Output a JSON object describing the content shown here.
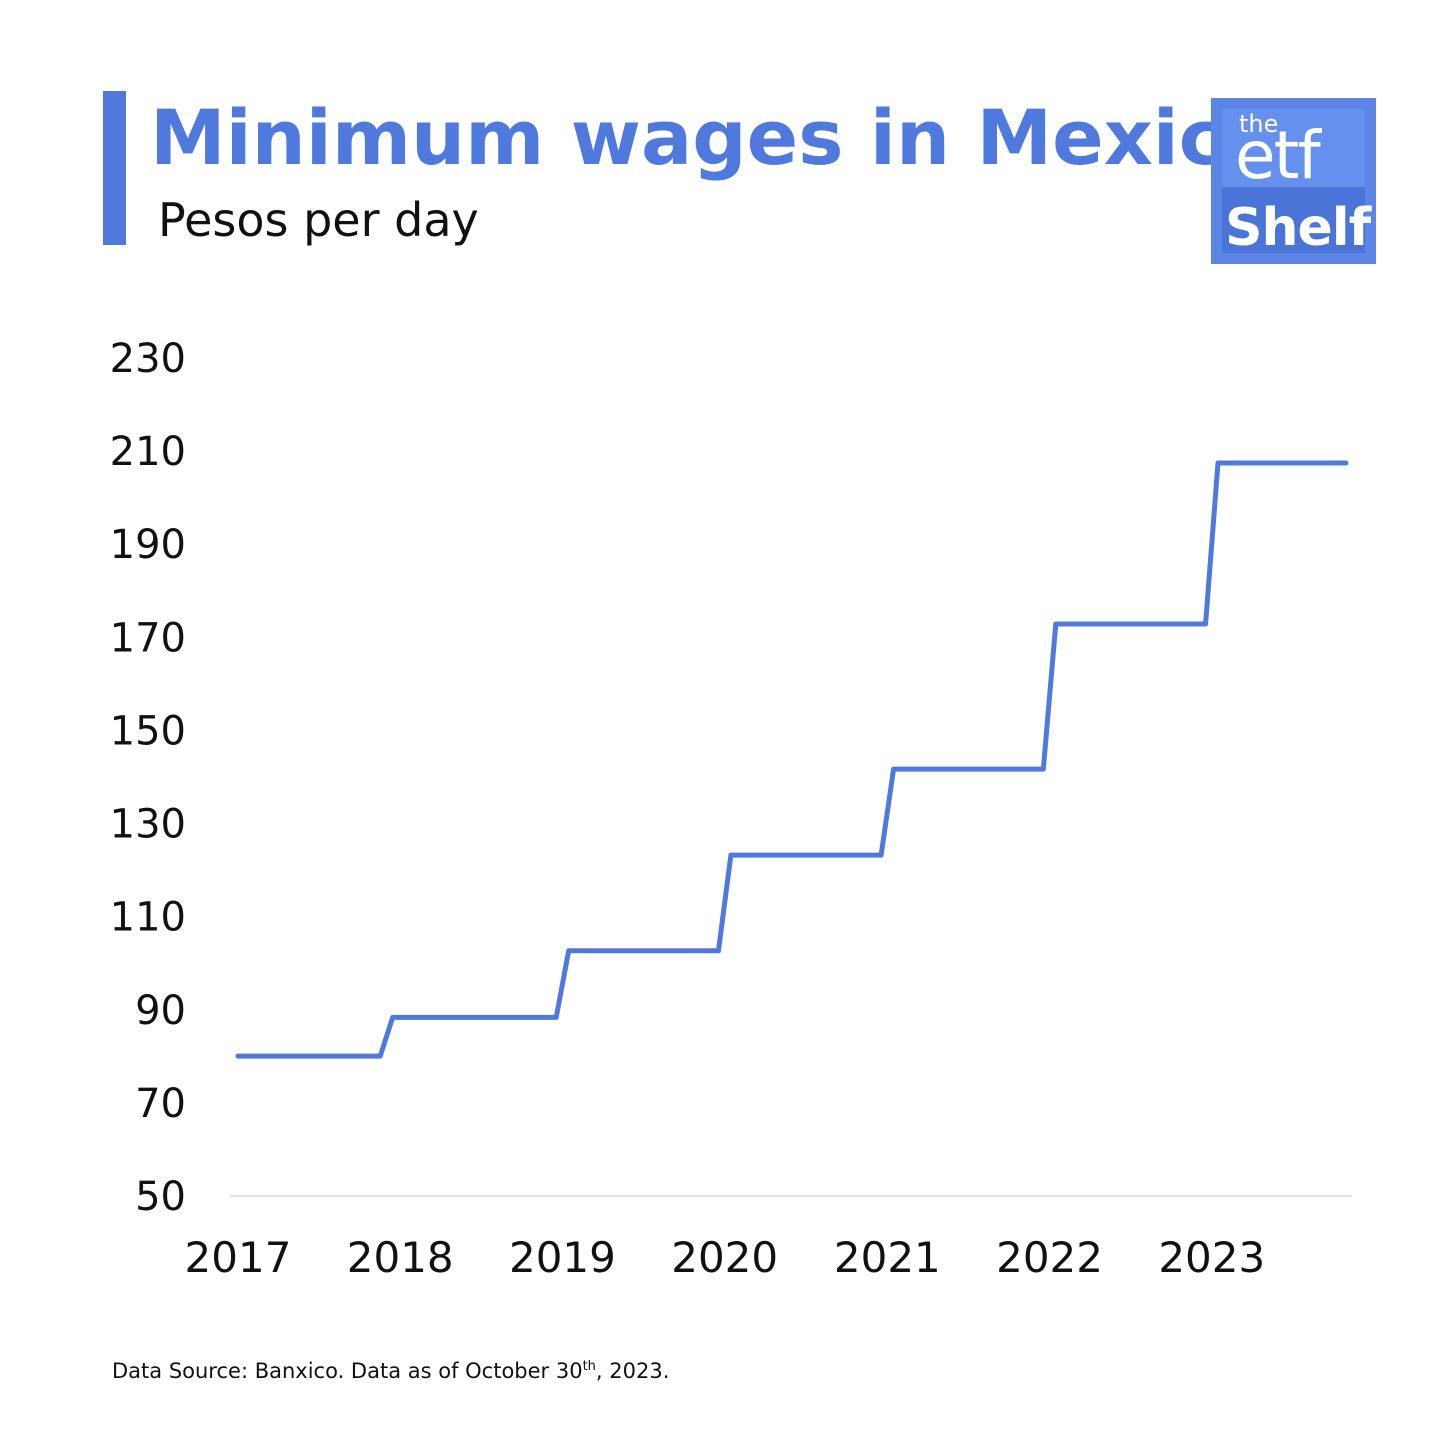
{
  "header": {
    "title": "Minimum wages in Mexico",
    "subtitle": "Pesos per day"
  },
  "logo": {
    "line1": "the",
    "line2": "etf",
    "line3": "Shelf"
  },
  "footer": {
    "source_prefix": "Data Source: Banxico. Data as of October 30",
    "source_sup": "th",
    "source_suffix": ", 2023."
  },
  "colors": {
    "accent": "#4f79dd",
    "axis_line": "#e4e4e4",
    "text": "#111111"
  },
  "chart_data": {
    "type": "line",
    "step": true,
    "title": "Minimum wages in Mexico",
    "subtitle": "Pesos per day",
    "xlabel": "",
    "ylabel": "",
    "xlim": [
      "2017-01-01",
      "2023-10-30"
    ],
    "ylim": [
      50,
      230
    ],
    "yticks": [
      "230",
      "210",
      "190",
      "170",
      "150",
      "130",
      "110",
      "90",
      "70",
      "50"
    ],
    "xticks": [
      "2017",
      "2018",
      "2019",
      "2020",
      "2021",
      "2022",
      "2023"
    ],
    "grid": false,
    "legend": "none",
    "series": [
      {
        "color": "#4f79dd",
        "points": [
          {
            "x": "2017-01-01",
            "y": 80.04
          },
          {
            "x": "2017-12-01",
            "y": 88.36
          },
          {
            "x": "2019-01-01",
            "y": 102.68
          },
          {
            "x": "2020-01-01",
            "y": 123.22
          },
          {
            "x": "2021-01-01",
            "y": 141.7
          },
          {
            "x": "2022-01-01",
            "y": 172.87
          },
          {
            "x": "2023-01-01",
            "y": 207.44
          },
          {
            "x": "2023-10-30",
            "y": 207.44
          }
        ]
      }
    ]
  }
}
